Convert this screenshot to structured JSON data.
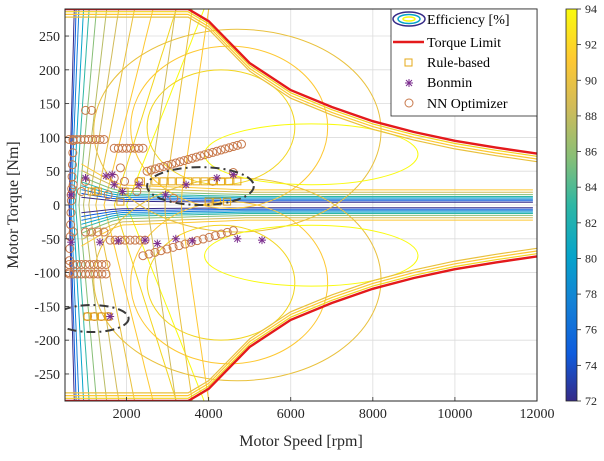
{
  "chart_data": {
    "type": "contour",
    "xlabel": "Motor Speed [rpm]",
    "ylabel": "Motor Torque [Nm]",
    "xlim": [
      500,
      12000
    ],
    "ylim": [
      -290,
      290
    ],
    "xticks": [
      2000,
      4000,
      6000,
      8000,
      10000,
      12000
    ],
    "yticks": [
      -250,
      -200,
      -150,
      -100,
      -50,
      0,
      50,
      100,
      150,
      200,
      250
    ],
    "grid": true,
    "legend_position": "top-right",
    "legend": {
      "efficiency": "Efficiency [%]",
      "torque_limit": "Torque Limit",
      "rule_based": "Rule-based",
      "bonmin": "Bonmin",
      "nn": "NN Optimizer"
    },
    "colorbar": {
      "label_values": [
        72,
        74,
        76,
        78,
        80,
        82,
        84,
        86,
        88,
        90,
        92,
        94
      ],
      "min": 72,
      "max": 94
    },
    "colors": {
      "torque_limit": "#e41a1c",
      "rule_based": "#e6a817",
      "bonmin": "#7b2d8e",
      "nn": "#c8784a",
      "ellipse": "#3a3a3a"
    },
    "torque_limit": [
      [
        500,
        290
      ],
      [
        3500,
        290
      ],
      [
        4000,
        272
      ],
      [
        5000,
        210
      ],
      [
        6000,
        170
      ],
      [
        7000,
        145
      ],
      [
        8000,
        124
      ],
      [
        9000,
        108
      ],
      [
        10000,
        95
      ],
      [
        11000,
        85
      ],
      [
        12000,
        76
      ]
    ],
    "rule_based": [
      [
        1050,
        -165
      ],
      [
        1200,
        -165
      ],
      [
        1400,
        -165
      ],
      [
        1550,
        -165
      ],
      [
        1150,
        20
      ],
      [
        1300,
        20
      ],
      [
        1850,
        5
      ],
      [
        1950,
        20
      ],
      [
        2350,
        35
      ],
      [
        2700,
        35
      ],
      [
        2900,
        35
      ],
      [
        3100,
        35
      ],
      [
        3300,
        35
      ],
      [
        3500,
        35
      ],
      [
        3700,
        35
      ],
      [
        3900,
        35
      ],
      [
        4100,
        35
      ],
      [
        4300,
        35
      ],
      [
        4500,
        35
      ],
      [
        4700,
        35
      ],
      [
        4000,
        5
      ],
      [
        4200,
        5
      ],
      [
        4450,
        5
      ]
    ],
    "bonmin": [
      [
        650,
        15
      ],
      [
        650,
        -55
      ],
      [
        1000,
        40
      ],
      [
        1350,
        -55
      ],
      [
        1800,
        -53
      ],
      [
        1900,
        20
      ],
      [
        2300,
        30
      ],
      [
        2450,
        -52
      ],
      [
        2750,
        -57
      ],
      [
        2950,
        15
      ],
      [
        3200,
        -50
      ],
      [
        3450,
        30
      ],
      [
        3600,
        -53
      ],
      [
        4200,
        40
      ],
      [
        4700,
        -50
      ],
      [
        5300,
        -52
      ],
      [
        4600,
        45
      ],
      [
        1600,
        -165
      ],
      [
        1650,
        45
      ],
      [
        1500,
        43
      ],
      [
        1700,
        30
      ]
    ],
    "nn_clusters": [
      {
        "x": [
          600,
          1450
        ],
        "y": 97,
        "n": 10
      },
      {
        "x": [
          1700,
          2400
        ],
        "y": 84,
        "n": 8
      },
      {
        "x": [
          600,
          700
        ],
        "y": [
          -100,
          95
        ],
        "n": 12
      },
      {
        "x": [
          600,
          1500
        ],
        "y": -88,
        "n": 10
      },
      {
        "x": [
          600,
          1500
        ],
        "y": -102,
        "n": 10
      },
      {
        "x": [
          1600,
          2450
        ],
        "y": -52,
        "n": 8
      },
      {
        "x": [
          2400,
          4600
        ],
        "y": [
          -75,
          -38
        ],
        "n": 16
      },
      {
        "x": [
          2500,
          4800
        ],
        "y": [
          50,
          90
        ],
        "n": 24
      },
      {
        "x": [
          1000,
          1450
        ],
        "y": -40,
        "n": 4
      },
      {
        "x": [
          1050,
          1550
        ],
        "y": -165,
        "n": 4
      },
      {
        "x": [
          1000,
          1150
        ],
        "y": 140,
        "n": 2
      }
    ],
    "nn_single": [
      [
        700,
        30
      ],
      [
        900,
        20
      ],
      [
        1000,
        35
      ],
      [
        1250,
        20
      ],
      [
        1850,
        55
      ],
      [
        1950,
        35
      ],
      [
        2250,
        20
      ],
      [
        2300,
        35
      ],
      [
        1700,
        40
      ],
      [
        1550,
        15
      ],
      [
        650,
        15
      ],
      [
        700,
        -40
      ],
      [
        3150,
        10
      ],
      [
        4100,
        35
      ],
      [
        4600,
        48
      ]
    ],
    "ellipses": [
      {
        "cx": 3800,
        "cy": 28,
        "rx": 1300,
        "ry": 28
      },
      {
        "cx": 1150,
        "cy": -168,
        "rx": 900,
        "ry": 20
      }
    ]
  }
}
